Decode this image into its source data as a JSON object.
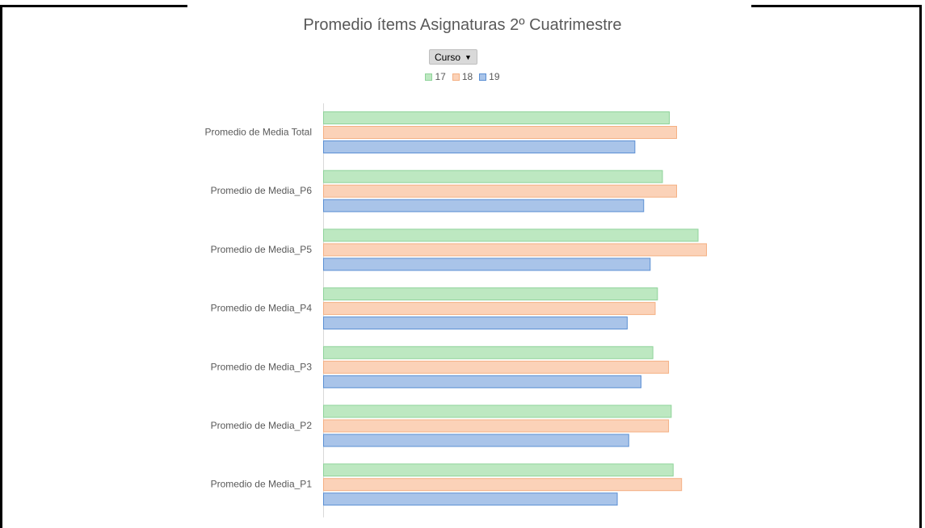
{
  "chart_data": {
    "type": "bar",
    "orientation": "horizontal",
    "title": "Promedio ítems Asignaturas 2º Cuatrimestre",
    "filter_button": {
      "label": "Curso",
      "icon": "dropdown-caret-icon"
    },
    "categories": [
      "Promedio de Media Total",
      "Promedio de Media_P6",
      "Promedio de Media_P5",
      "Promedio de Media_P4",
      "Promedio de Media_P3",
      "Promedio de Media_P2",
      "Promedio de Media_P1"
    ],
    "series": [
      {
        "name": "17",
        "color": "#bde8c1",
        "stroke": "#8fd39a",
        "values": [
          0.903,
          0.885,
          0.978,
          0.872,
          0.86,
          0.908,
          0.913
        ]
      },
      {
        "name": "18",
        "color": "#fbd2b8",
        "stroke": "#f4b083",
        "values": [
          0.922,
          0.922,
          1.0,
          0.866,
          0.901,
          0.901,
          0.935
        ]
      },
      {
        "name": "19",
        "color": "#a9c4e9",
        "stroke": "#5b8fd3",
        "values": [
          0.813,
          0.836,
          0.853,
          0.793,
          0.829,
          0.797,
          0.767
        ]
      }
    ],
    "xlim": [
      0,
      1
    ],
    "legend": "top-center",
    "grid": false,
    "axis_labels_visible": false
  }
}
